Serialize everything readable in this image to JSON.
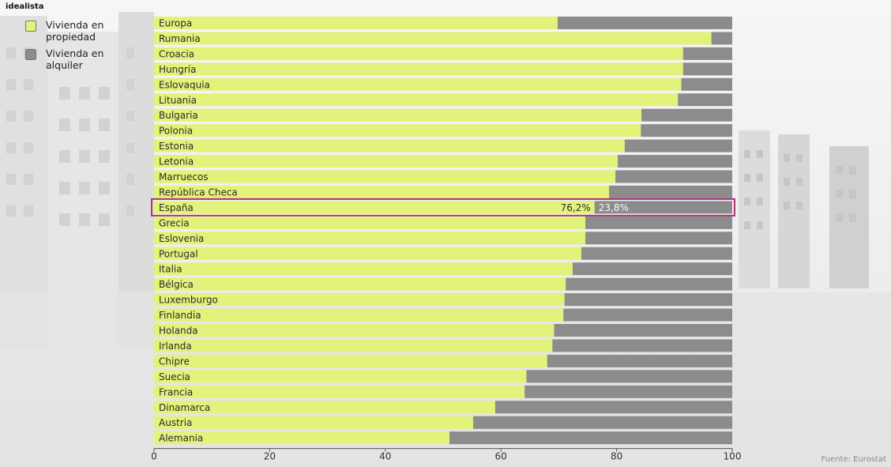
{
  "brand": "idealista",
  "source": "Fuente: Eurostat",
  "legend": [
    {
      "label": "Vivienda en propiedad",
      "color": "#e3f27a"
    },
    {
      "label": "Vivienda en alquiler",
      "color": "#8c8c8c"
    }
  ],
  "colors": {
    "owned": "#e3f27a",
    "rented": "#8c8c8c",
    "highlight": "#b0307a",
    "text": "#2b2b2b"
  },
  "chart_data": {
    "type": "bar",
    "orientation": "horizontal",
    "stacked": true,
    "categories": [
      "Europa",
      "Rumania",
      "Croacia",
      "Hungría",
      "Eslovaquia",
      "Lituania",
      "Bulgaria",
      "Polonia",
      "Estonia",
      "Letonia",
      "Marruecos",
      "República Checa",
      "España",
      "Grecia",
      "Eslovenia",
      "Portugal",
      "Italia",
      "Bélgica",
      "Luxemburgo",
      "Finlandia",
      "Holanda",
      "Irlanda",
      "Chipre",
      "Suecia",
      "Francia",
      "Dinamarca",
      "Austria",
      "Alemania"
    ],
    "series": [
      {
        "name": "Vivienda en propiedad",
        "values": [
          69.8,
          96.4,
          91.5,
          91.5,
          91.2,
          90.6,
          84.3,
          84.2,
          81.4,
          80.2,
          79.8,
          78.7,
          76.2,
          74.6,
          74.6,
          73.9,
          72.4,
          71.2,
          71.0,
          70.8,
          69.2,
          68.9,
          68.0,
          64.4,
          64.1,
          59.0,
          55.2,
          51.1
        ]
      },
      {
        "name": "Vivienda en alquiler",
        "values": [
          30.2,
          3.6,
          8.5,
          8.5,
          8.8,
          9.4,
          15.7,
          15.8,
          18.6,
          19.8,
          20.2,
          21.3,
          23.8,
          25.4,
          25.4,
          26.1,
          27.6,
          28.8,
          29.0,
          29.2,
          30.8,
          31.1,
          32.0,
          35.6,
          35.9,
          41.0,
          44.8,
          48.9
        ]
      }
    ],
    "highlight": "España",
    "data_labels": {
      "España": [
        "76,2%",
        "23,8%"
      ]
    },
    "xlim": [
      0,
      100
    ],
    "xticks": [
      0,
      20,
      40,
      60,
      80,
      100
    ],
    "grid": false,
    "legend_position": "top-left"
  }
}
